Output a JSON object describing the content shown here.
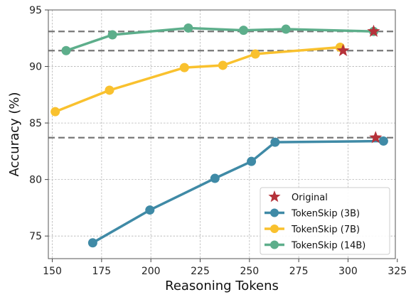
{
  "chart_data": {
    "type": "line",
    "xlabel": "Reasoning Tokens",
    "ylabel": "Accuracy (%)",
    "xlim": [
      148,
      324
    ],
    "ylim": [
      73,
      95
    ],
    "xticks": [
      150,
      175,
      200,
      225,
      250,
      275,
      300,
      325
    ],
    "yticks": [
      75,
      80,
      85,
      90,
      95
    ],
    "grid": true,
    "legend_position": "bottom-right",
    "series": [
      {
        "name": "TokenSkip (3B)",
        "color": "#3f8aa6",
        "x": [
          170.5,
          199.5,
          232.5,
          251,
          263,
          318
        ],
        "y": [
          74.4,
          77.3,
          80.1,
          81.6,
          83.3,
          83.4
        ]
      },
      {
        "name": "TokenSkip (7B)",
        "color": "#f9c12e",
        "x": [
          151.5,
          179,
          217,
          236.5,
          253,
          296
        ],
        "y": [
          86.0,
          87.9,
          89.9,
          90.1,
          91.1,
          91.7
        ]
      },
      {
        "name": "TokenSkip (14B)",
        "color": "#5dae8b",
        "x": [
          157,
          180.5,
          219,
          247,
          268.5,
          313
        ],
        "y": [
          91.4,
          92.8,
          93.4,
          93.2,
          93.3,
          93.1
        ]
      }
    ],
    "original": {
      "name": "Original",
      "color": "#b5323a",
      "points": [
        {
          "x": 314,
          "y": 83.7
        },
        {
          "x": 297.5,
          "y": 91.4
        },
        {
          "x": 313,
          "y": 93.1
        }
      ]
    },
    "reference_lines_y": [
      93.1,
      91.4,
      83.7
    ]
  }
}
